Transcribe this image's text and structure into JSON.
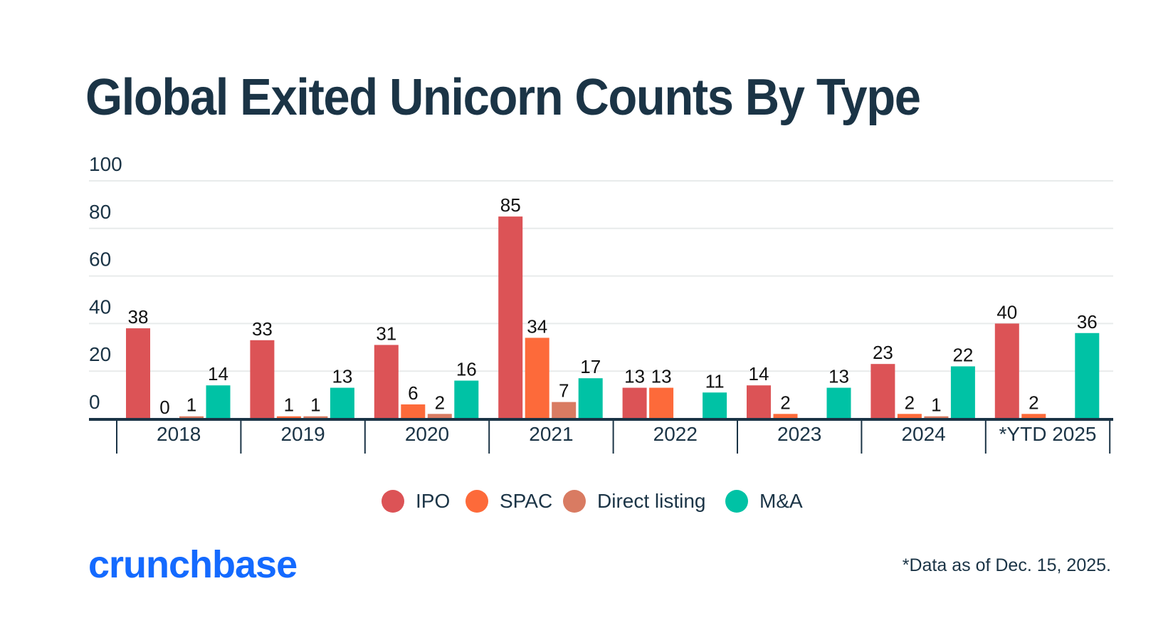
{
  "title": "Global Exited Unicorn Counts By Type",
  "logo_text": "crunchbase",
  "footnote": "*Data as of Dec. 15, 2025.",
  "chart_data": {
    "type": "bar",
    "title": "Global Exited Unicorn Counts By Type",
    "xlabel": "",
    "ylabel": "",
    "ylim": [
      0,
      100
    ],
    "yticks": [
      "0",
      "20",
      "40",
      "60",
      "80",
      "100"
    ],
    "grid": true,
    "legend_position": "bottom-center",
    "categories": [
      "2018",
      "2019",
      "2020",
      "2021",
      "2022",
      "2023",
      "2024",
      "*YTD 2025"
    ],
    "series": [
      {
        "name": "IPO",
        "color": "#dc5356",
        "values": [
          38,
          33,
          31,
          85,
          13,
          14,
          23,
          40
        ]
      },
      {
        "name": "SPAC",
        "color": "#fd6a3a",
        "values": [
          0,
          1,
          6,
          34,
          13,
          2,
          2,
          2
        ]
      },
      {
        "name": "Direct listing",
        "color": "#d97b62",
        "values": [
          1,
          1,
          2,
          7,
          null,
          null,
          1,
          null
        ]
      },
      {
        "name": "M&A",
        "color": "#00c2a5",
        "values": [
          14,
          13,
          16,
          17,
          11,
          13,
          22,
          36
        ]
      }
    ]
  }
}
